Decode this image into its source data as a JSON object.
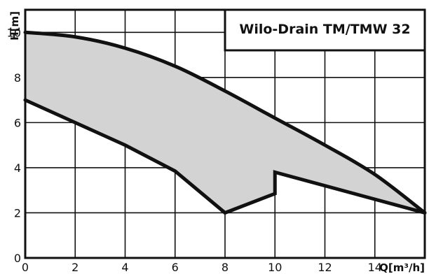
{
  "chart_data": {
    "type": "area",
    "title": "Wilo-Drain TM/TMW 32",
    "xlabel": "Q[m³/h]",
    "ylabel": "H[m]",
    "xlim": [
      0,
      16
    ],
    "ylim": [
      0,
      11
    ],
    "grid": true,
    "x_ticks": [
      {
        "value": 0,
        "label": "0"
      },
      {
        "value": 2,
        "label": "2"
      },
      {
        "value": 4,
        "label": "4"
      },
      {
        "value": 6,
        "label": "6"
      },
      {
        "value": 8,
        "label": "8"
      },
      {
        "value": 10,
        "label": "10"
      },
      {
        "value": 12,
        "label": "12"
      },
      {
        "value": 14,
        "label": "14"
      }
    ],
    "y_ticks": [
      {
        "value": 0,
        "label": "0"
      },
      {
        "value": 2,
        "label": "2"
      },
      {
        "value": 4,
        "label": "4"
      },
      {
        "value": 6,
        "label": "6"
      },
      {
        "value": 8,
        "label": "8"
      },
      {
        "value": 10,
        "label": "10"
      }
    ],
    "series": [
      {
        "role": "upper-boundary",
        "points": [
          [
            0,
            10.0
          ],
          [
            2,
            9.8
          ],
          [
            4,
            9.3
          ],
          [
            6,
            8.5
          ],
          [
            8,
            7.4
          ],
          [
            10,
            6.2
          ],
          [
            12,
            5.0
          ],
          [
            14,
            3.7
          ],
          [
            16,
            2.0
          ]
        ]
      },
      {
        "role": "lower-boundary",
        "points": [
          [
            0,
            7.0
          ],
          [
            2,
            6.0
          ],
          [
            4,
            5.0
          ],
          [
            6,
            3.85
          ],
          [
            8,
            2.0
          ],
          [
            10,
            2.85
          ],
          [
            10,
            3.8
          ],
          [
            16,
            2.0
          ]
        ]
      }
    ],
    "colors": {
      "fill": "#d3d3d3",
      "curve": "#111111",
      "grid": "#111111",
      "background": "#ffffff"
    }
  }
}
